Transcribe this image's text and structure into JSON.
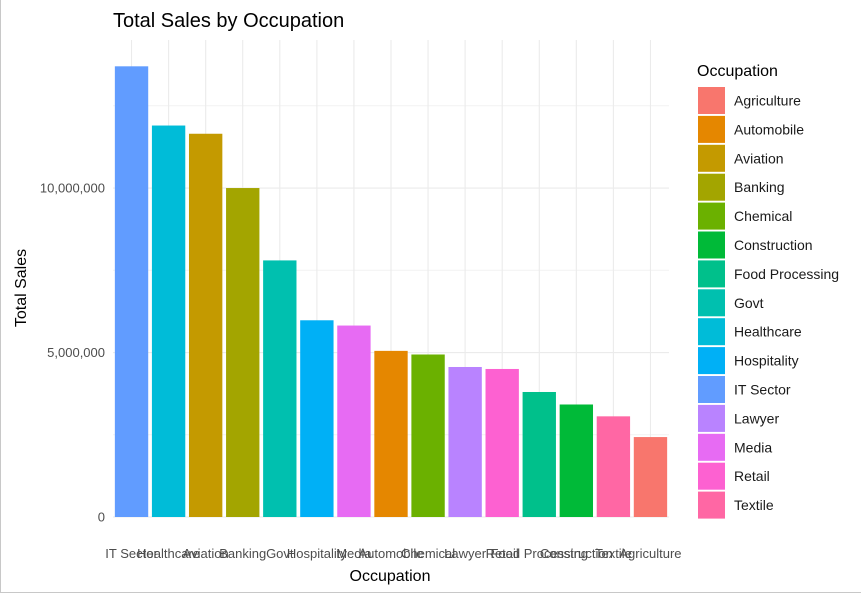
{
  "chart_data": {
    "type": "bar",
    "title": "Total Sales by Occupation",
    "xlabel": "Occupation",
    "ylabel": "Total Sales",
    "ylim": [
      0,
      14500000
    ],
    "yticks": [
      0,
      5000000,
      10000000
    ],
    "ytick_labels": [
      "0",
      "5,000,000",
      "10,000,000"
    ],
    "grid": true,
    "legend": {
      "title": "Occupation",
      "position": "right"
    },
    "bars": [
      {
        "category": "IT Sector",
        "value": 13700000,
        "color": "#619CFF"
      },
      {
        "category": "Healthcare",
        "value": 11900000,
        "color": "#00BCD8"
      },
      {
        "category": "Aviation",
        "value": 11650000,
        "color": "#C49A00"
      },
      {
        "category": "Banking",
        "value": 10000000,
        "color": "#A3A500"
      },
      {
        "category": "Govt",
        "value": 7800000,
        "color": "#00C0AF"
      },
      {
        "category": "Hospitality",
        "value": 5980000,
        "color": "#00B0F6"
      },
      {
        "category": "Media",
        "value": 5820000,
        "color": "#E76BF3"
      },
      {
        "category": "Automobile",
        "value": 5050000,
        "color": "#E58700"
      },
      {
        "category": "Chemical",
        "value": 4940000,
        "color": "#6BB100"
      },
      {
        "category": "Lawyer",
        "value": 4560000,
        "color": "#B983FF"
      },
      {
        "category": "Retail",
        "value": 4500000,
        "color": "#FD61D1"
      },
      {
        "category": "Food Processing",
        "value": 3800000,
        "color": "#00C08B"
      },
      {
        "category": "Construction",
        "value": 3420000,
        "color": "#00BA38"
      },
      {
        "category": "Textile",
        "value": 3060000,
        "color": "#FF67A4"
      },
      {
        "category": "Agriculture",
        "value": 2430000,
        "color": "#F8766D"
      }
    ],
    "legend_entries": [
      {
        "label": "Agriculture",
        "color": "#F8766D"
      },
      {
        "label": "Automobile",
        "color": "#E58700"
      },
      {
        "label": "Aviation",
        "color": "#C49A00"
      },
      {
        "label": "Banking",
        "color": "#A3A500"
      },
      {
        "label": "Chemical",
        "color": "#6BB100"
      },
      {
        "label": "Construction",
        "color": "#00BA38"
      },
      {
        "label": "Food Processing",
        "color": "#00C08B"
      },
      {
        "label": "Govt",
        "color": "#00C0AF"
      },
      {
        "label": "Healthcare",
        "color": "#00BCD8"
      },
      {
        "label": "Hospitality",
        "color": "#00B0F6"
      },
      {
        "label": "IT Sector",
        "color": "#619CFF"
      },
      {
        "label": "Lawyer",
        "color": "#B983FF"
      },
      {
        "label": "Media",
        "color": "#E76BF3"
      },
      {
        "label": "Retail",
        "color": "#FD61D1"
      },
      {
        "label": "Textile",
        "color": "#FF67A4"
      }
    ]
  }
}
